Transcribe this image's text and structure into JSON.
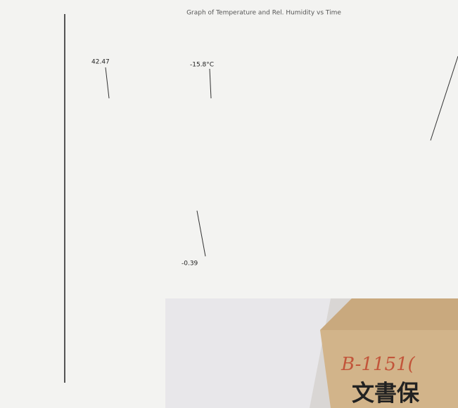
{
  "chart_title": "Graph of Temperature and Rel. Humidity vs Time",
  "annotations": [
    "42.47",
    "-15.8°C",
    "-0.39"
  ],
  "photo": {
    "handwritten": "B-1151(",
    "printed": "文書保"
  }
}
